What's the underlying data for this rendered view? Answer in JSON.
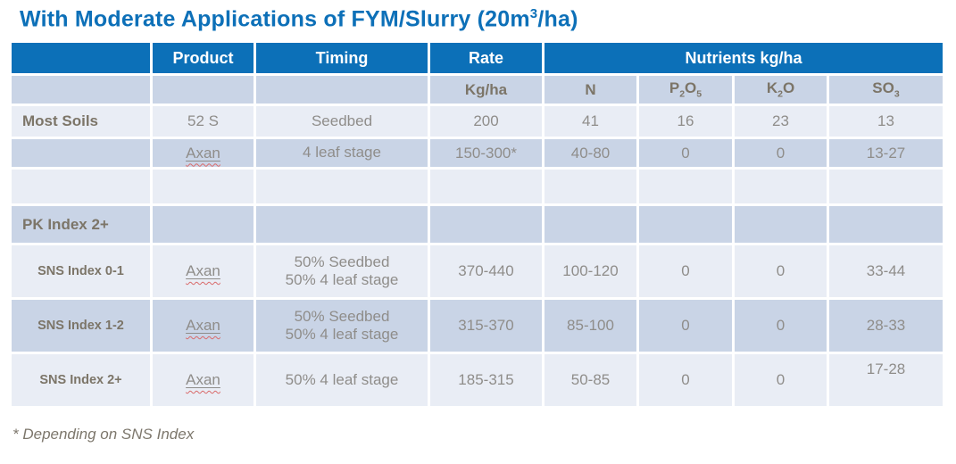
{
  "title": {
    "text_main": "With Moderate Applications of FYM/Slurry (20m",
    "superscript": "3",
    "text_end": "/ha)"
  },
  "colors": {
    "title_blue": "#0d70b8",
    "header_bg": "#0c70b8",
    "header_text": "#ffffff",
    "row_light": "#e9edf5",
    "row_dark": "#c9d4e6",
    "data_text": "#8f8d8a",
    "label_text": "#7c7568",
    "spellcheck_red": "#d96a6a"
  },
  "table": {
    "header": {
      "row_label": "",
      "product": "Product",
      "timing": "Timing",
      "rate": "Rate",
      "nutrients": "Nutrients kg/ha"
    },
    "subheader": {
      "blank1": "",
      "blank2": "",
      "blank3": "",
      "rate_unit": "Kg/ha",
      "n": "N",
      "p2o5": {
        "base1": "P",
        "sub1": "2",
        "base2": "O",
        "sub2": "5"
      },
      "k2o": {
        "base1": "K",
        "sub1": "2",
        "base2": "O"
      },
      "so3": {
        "base1": "SO",
        "sub1": "3"
      }
    },
    "rows": [
      {
        "label": "Most Soils",
        "product": "52 S",
        "timing1": "Seedbed",
        "timing2": "",
        "rate": "200",
        "n": "41",
        "p2o5": "16",
        "k2o": "23",
        "so3": "13"
      },
      {
        "label": "",
        "product": "Axan",
        "timing1": "4 leaf stage",
        "timing2": "",
        "rate": "150-300*",
        "n": "40-80",
        "p2o5": "0",
        "k2o": "0",
        "so3": "13-27"
      },
      {
        "label": "",
        "product": "",
        "timing1": "",
        "timing2": "",
        "rate": "",
        "n": "",
        "p2o5": "",
        "k2o": "",
        "so3": ""
      },
      {
        "label": "PK Index 2+",
        "product": "",
        "timing1": "",
        "timing2": "",
        "rate": "",
        "n": "",
        "p2o5": "",
        "k2o": "",
        "so3": ""
      },
      {
        "label": "SNS Index 0-1",
        "product": "Axan",
        "timing1": "50% Seedbed",
        "timing2": "50% 4 leaf stage",
        "rate": "370-440",
        "n": "100-120",
        "p2o5": "0",
        "k2o": "0",
        "so3": "33-44"
      },
      {
        "label": "SNS Index 1-2",
        "product": "Axan",
        "timing1": "50% Seedbed",
        "timing2": "50% 4 leaf stage",
        "rate": "315-370",
        "n": "85-100",
        "p2o5": "0",
        "k2o": "0",
        "so3": "28-33"
      },
      {
        "label": "SNS Index 2+",
        "product": "Axan",
        "timing1": "50% 4 leaf stage",
        "timing2": "",
        "rate": "185-315",
        "n": "50-85",
        "p2o5": "0",
        "k2o": "0",
        "so3": "17-28"
      }
    ]
  },
  "footnote": "* Depending on SNS Index"
}
